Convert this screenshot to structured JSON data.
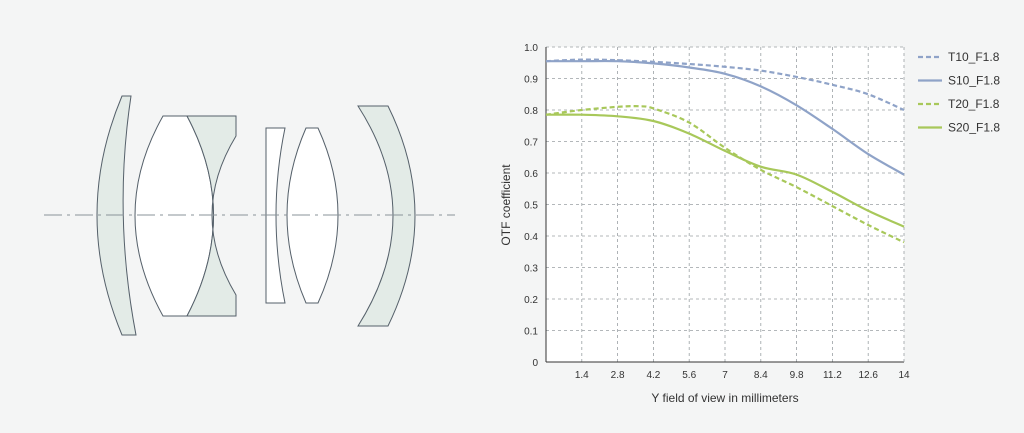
{
  "diagram": {
    "name": "lens element cross-section",
    "element_fill": "#e3ebe7",
    "glass_fill": "#ffffff",
    "stroke": "#55606a",
    "axis_color": "#8a9399"
  },
  "chart_data": {
    "type": "line",
    "title": "",
    "xlabel": "Y field of view in millimeters",
    "ylabel": "OTF coefficient",
    "xlim": [
      0,
      14
    ],
    "ylim": [
      0,
      1.0
    ],
    "xticks": [
      "1.4",
      "2.8",
      "4.2",
      "5.6",
      "7",
      "8.4",
      "9.8",
      "11.2",
      "12.6",
      "14"
    ],
    "yticks": [
      "0",
      "0.1",
      "0.2",
      "0.3",
      "0.4",
      "0.5",
      "0.6",
      "0.7",
      "0.8",
      "0.9",
      "1.0"
    ],
    "grid": true,
    "legend_position": "right",
    "series": [
      {
        "name": "T10_F1.8",
        "color": "#8fa3c8",
        "dashed": true,
        "x": [
          0,
          1.4,
          2.8,
          4.2,
          5.6,
          7,
          8.4,
          9.8,
          11.2,
          12.6,
          14
        ],
        "y": [
          0.955,
          0.96,
          0.958,
          0.953,
          0.946,
          0.937,
          0.925,
          0.905,
          0.88,
          0.85,
          0.8
        ]
      },
      {
        "name": "S10_F1.8",
        "color": "#8fa3c8",
        "dashed": false,
        "x": [
          0,
          1.4,
          2.8,
          4.2,
          5.6,
          7,
          8.4,
          9.8,
          11.2,
          12.6,
          14
        ],
        "y": [
          0.955,
          0.955,
          0.955,
          0.948,
          0.935,
          0.915,
          0.875,
          0.815,
          0.74,
          0.66,
          0.595
        ]
      },
      {
        "name": "T20_F1.8",
        "color": "#a8c85a",
        "dashed": true,
        "x": [
          0,
          1.4,
          2.8,
          3.6,
          4.2,
          5.6,
          7,
          8.4,
          9.8,
          11.2,
          12.6,
          14
        ],
        "y": [
          0.785,
          0.8,
          0.81,
          0.812,
          0.805,
          0.76,
          0.68,
          0.61,
          0.555,
          0.495,
          0.435,
          0.38
        ]
      },
      {
        "name": "S20_F1.8",
        "color": "#a8c85a",
        "dashed": false,
        "x": [
          0,
          1.4,
          2.8,
          4.2,
          5.6,
          7,
          8.4,
          9.8,
          11.2,
          12.6,
          14
        ],
        "y": [
          0.785,
          0.785,
          0.78,
          0.765,
          0.725,
          0.67,
          0.62,
          0.595,
          0.54,
          0.48,
          0.43
        ]
      }
    ]
  }
}
